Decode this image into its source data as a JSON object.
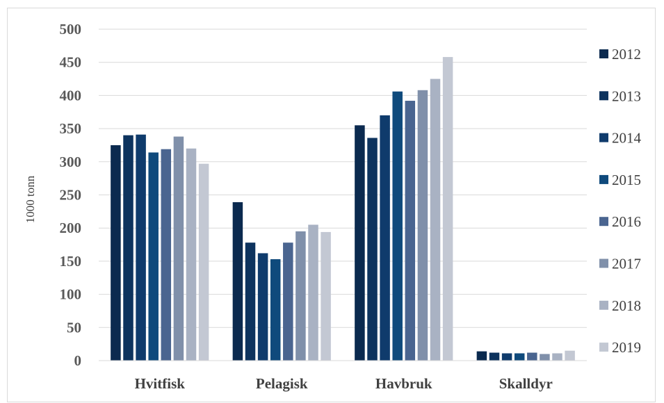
{
  "chart_data": {
    "type": "bar",
    "title": "",
    "xlabel": "",
    "ylabel": "1000 tonn",
    "ylim": [
      0,
      500
    ],
    "yticks": [
      0,
      50,
      100,
      150,
      200,
      250,
      300,
      350,
      400,
      450,
      500
    ],
    "grid": true,
    "legend_position": "right",
    "categories": [
      "Hvitfisk",
      "Pelagisk",
      "Havbruk",
      "Skalldyr"
    ],
    "series": [
      {
        "name": "2012",
        "color": "#0b2a4f",
        "values": [
          325,
          239,
          355,
          14
        ]
      },
      {
        "name": "2013",
        "color": "#0d335e",
        "values": [
          340,
          178,
          336,
          12
        ]
      },
      {
        "name": "2014",
        "color": "#0f3b6c",
        "values": [
          341,
          162,
          370,
          11
        ]
      },
      {
        "name": "2015",
        "color": "#0f4a7c",
        "values": [
          314,
          153,
          406,
          11
        ]
      },
      {
        "name": "2016",
        "color": "#4a6590",
        "values": [
          319,
          178,
          392,
          12
        ]
      },
      {
        "name": "2017",
        "color": "#8090aa",
        "values": [
          338,
          195,
          408,
          10
        ]
      },
      {
        "name": "2018",
        "color": "#a9b2c3",
        "values": [
          320,
          205,
          425,
          11
        ]
      },
      {
        "name": "2019",
        "color": "#c3c8d3",
        "values": [
          297,
          194,
          458,
          15
        ]
      }
    ]
  }
}
